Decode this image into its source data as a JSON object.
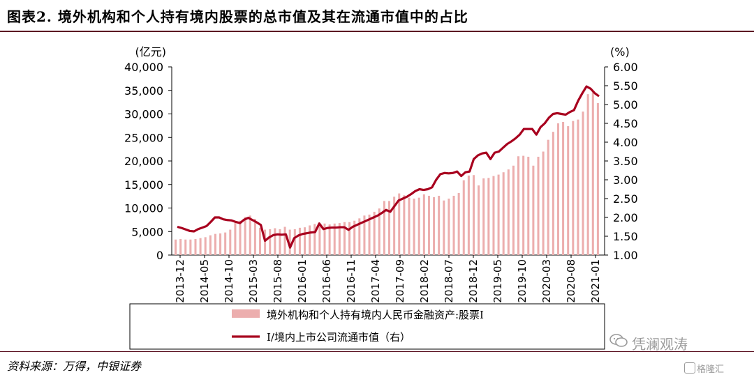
{
  "title": "图表2. 境外机构和个人持有境内股票的总市值及其在流通市值中的占比",
  "source": "资料来源：万得，中银证券",
  "watermark": "凭澜观涛",
  "watermark_small": "格隆汇",
  "chart_data": {
    "type": "bar+line",
    "left_unit": "(亿元)",
    "right_unit": "(%)",
    "left_ylim": [
      0,
      40000
    ],
    "left_ticks": [
      "40,000",
      "35,000",
      "30,000",
      "25,000",
      "20,000",
      "15,000",
      "10,000",
      "5,000",
      "0"
    ],
    "right_ylim": [
      1.0,
      6.0
    ],
    "right_ticks": [
      "6.00",
      "5.50",
      "5.00",
      "4.50",
      "4.00",
      "3.50",
      "3.00",
      "2.50",
      "2.00",
      "1.50",
      "1.00"
    ],
    "x_tick_labels": [
      "2013-12",
      "2014-05",
      "2014-10",
      "2015-03",
      "2015-08",
      "2016-01",
      "2016-06",
      "2016-11",
      "2017-04",
      "2017-09",
      "2018-02",
      "2018-07",
      "2018-12",
      "2019-05",
      "2019-10",
      "2020-03",
      "2020-08",
      "2021-01"
    ],
    "bar_color": "#ecaeae",
    "line_color": "#a8001e",
    "series": [
      {
        "name": "境外机构和个人持有境内人民币金融资产:股票I",
        "values": [
          3300,
          3400,
          3300,
          3300,
          3400,
          3600,
          3800,
          4200,
          4500,
          4600,
          4800,
          5400,
          6800,
          7300,
          8100,
          8400,
          7700,
          5800,
          5400,
          5500,
          5700,
          5500,
          6000,
          5400,
          5500,
          5800,
          5900,
          6300,
          6600,
          6400,
          6700,
          6500,
          6700,
          6800,
          7000,
          7000,
          7300,
          7800,
          8400,
          8600,
          9200,
          9900,
          11500,
          11500,
          12400,
          13100,
          12700,
          12200,
          12000,
          12200,
          12900,
          12600,
          12300,
          12600,
          11600,
          12000,
          12600,
          13200,
          15900,
          16900,
          17000,
          14800,
          16300,
          16400,
          16800,
          17100,
          17600,
          18200,
          19000,
          21000,
          21100,
          20900,
          19000,
          20900,
          22000,
          24500,
          26200,
          28000,
          28300,
          27400,
          28500,
          28800,
          30500,
          34200,
          34600,
          32300
        ]
      },
      {
        "name": "I/境内上市公司流通市值（右）",
        "values": [
          1.75,
          1.72,
          1.68,
          1.64,
          1.63,
          1.69,
          1.73,
          1.77,
          1.88,
          2.0,
          2.0,
          1.95,
          1.93,
          1.92,
          1.88,
          1.85,
          1.94,
          1.99,
          1.93,
          1.87,
          1.8,
          1.38,
          1.47,
          1.53,
          1.55,
          1.54,
          1.55,
          1.2,
          1.45,
          1.52,
          1.56,
          1.58,
          1.6,
          1.61,
          1.84,
          1.69,
          1.72,
          1.73,
          1.73,
          1.74,
          1.74,
          1.67,
          1.75,
          1.8,
          1.85,
          1.9,
          1.95,
          2.0,
          2.05,
          2.12,
          2.2,
          2.15,
          2.3,
          2.45,
          2.5,
          2.55,
          2.62,
          2.7,
          2.75,
          2.73,
          2.75,
          2.8,
          3.0,
          3.15,
          3.18,
          3.17,
          3.18,
          3.22,
          3.1,
          3.2,
          3.22,
          3.55,
          3.65,
          3.7,
          3.72,
          3.55,
          3.72,
          3.75,
          3.85,
          3.95,
          4.02,
          4.1,
          4.2,
          4.35,
          4.35,
          4.35,
          4.2,
          4.4,
          4.5,
          4.65,
          4.75,
          4.77,
          4.75,
          4.73,
          4.8,
          4.85,
          5.1,
          5.3,
          5.48,
          5.42,
          5.3,
          5.22
        ]
      }
    ]
  }
}
